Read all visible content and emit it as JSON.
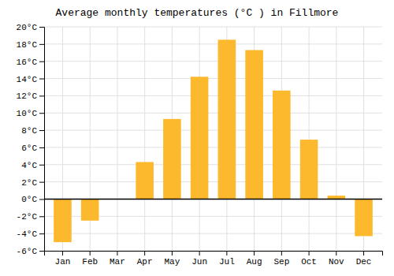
{
  "chart_data": {
    "type": "bar",
    "title": "Average monthly temperatures (°C ) in Fillmore",
    "categories": [
      "Jan",
      "Feb",
      "Mar",
      "Apr",
      "May",
      "Jun",
      "Jul",
      "Aug",
      "Sep",
      "Oct",
      "Nov",
      "Dec"
    ],
    "values": [
      -5.0,
      -2.5,
      0.0,
      4.3,
      9.3,
      14.2,
      18.5,
      17.3,
      12.6,
      6.9,
      0.4,
      -4.3
    ],
    "color": "#FDB92E",
    "ylim": [
      -6,
      20
    ],
    "yticks": [
      {
        "value": -6,
        "label": "-6°C"
      },
      {
        "value": -4,
        "label": "-4°C"
      },
      {
        "value": -2,
        "label": "-2°C"
      },
      {
        "value": 0,
        "label": "0°C"
      },
      {
        "value": 2,
        "label": "2°C"
      },
      {
        "value": 4,
        "label": "4°C"
      },
      {
        "value": 6,
        "label": "6°C"
      },
      {
        "value": 8,
        "label": "8°C"
      },
      {
        "value": 10,
        "label": "10°C"
      },
      {
        "value": 12,
        "label": "12°C"
      },
      {
        "value": 14,
        "label": "14°C"
      },
      {
        "value": 16,
        "label": "16°C"
      },
      {
        "value": 18,
        "label": "18°C"
      },
      {
        "value": 20,
        "label": "20°C"
      }
    ],
    "grid": true
  }
}
